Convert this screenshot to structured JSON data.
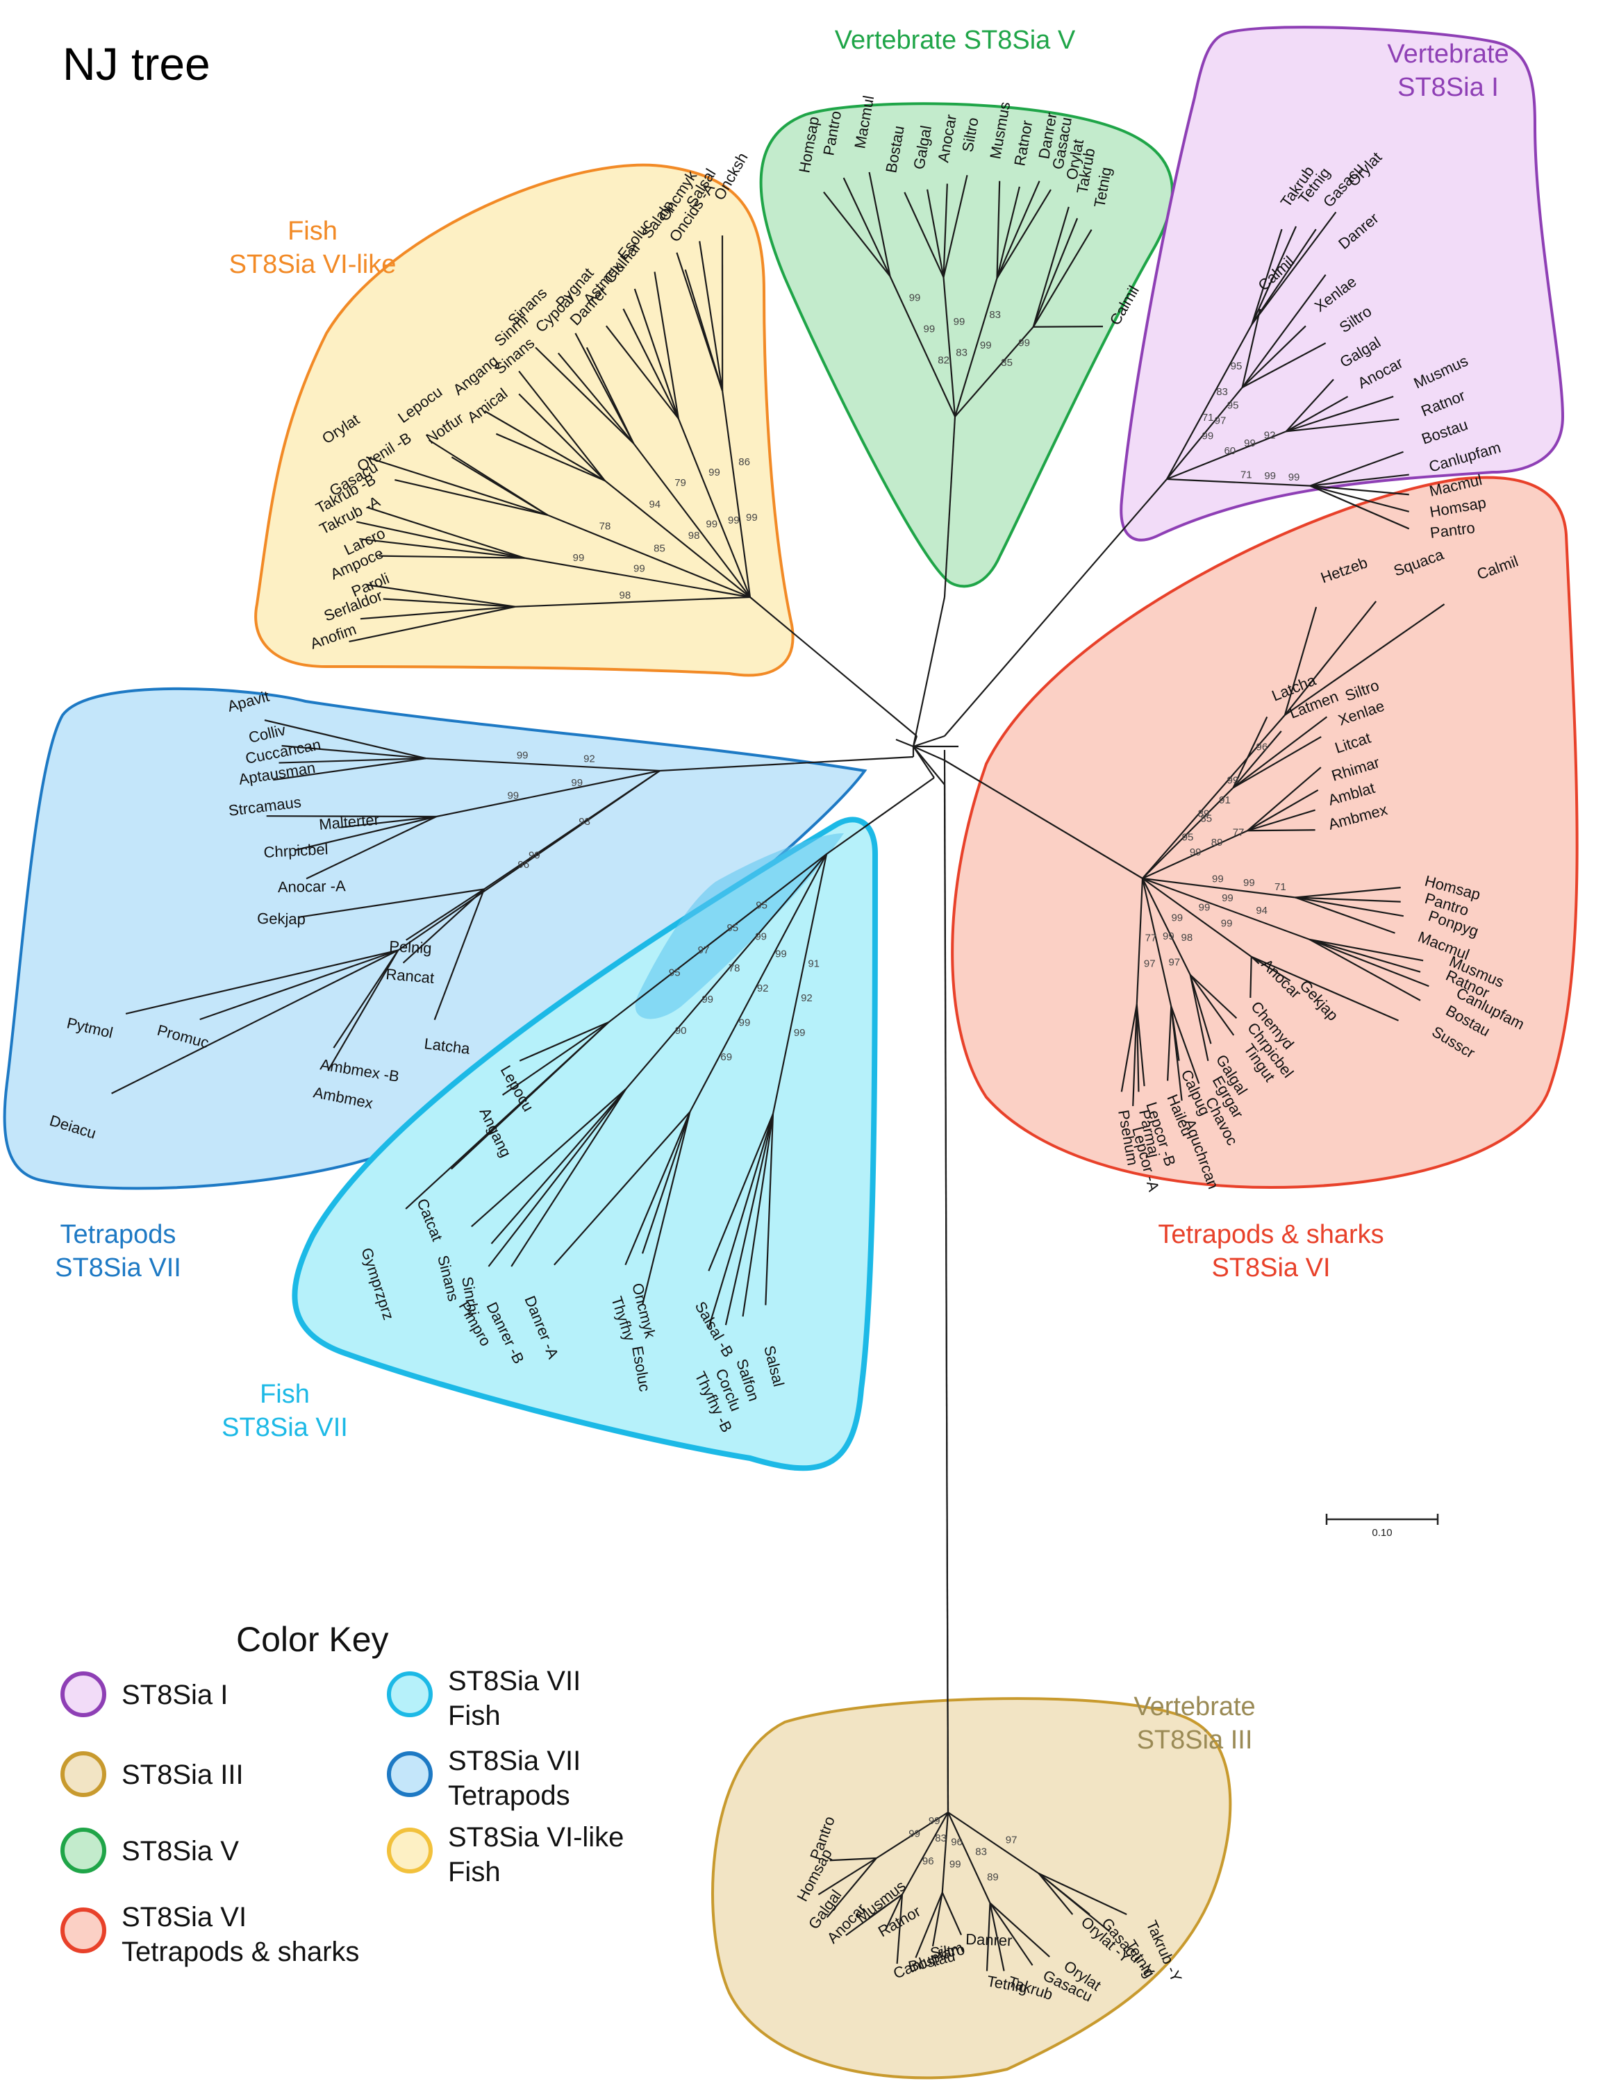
{
  "title": "NJ tree",
  "scale_bar": {
    "label": "0.10"
  },
  "color_key": {
    "title": "Color Key",
    "items": [
      {
        "id": "I",
        "line1": "ST8Sia I",
        "line2": "",
        "fill": "#f2dcf8",
        "stroke": "#8e3fb5"
      },
      {
        "id": "III",
        "line1": "ST8Sia III",
        "line2": "",
        "fill": "#f2e4c4",
        "stroke": "#c89a2e"
      },
      {
        "id": "V",
        "line1": "ST8Sia V",
        "line2": "",
        "fill": "#c3ebcc",
        "stroke": "#1fa548"
      },
      {
        "id": "VI",
        "line1": "ST8Sia VI",
        "line2": "Tetrapods & sharks",
        "fill": "#fbd0c5",
        "stroke": "#e8412a"
      },
      {
        "id": "VIIF",
        "line1": "ST8Sia VII",
        "line2": "Fish",
        "fill": "#b6f1fa",
        "stroke": "#1cb9e6"
      },
      {
        "id": "VIIT",
        "line1": "ST8Sia VII",
        "line2": "Tetrapods",
        "fill": "#c4e6fa",
        "stroke": "#1d79c4"
      },
      {
        "id": "VIL",
        "line1": "ST8Sia VI-like",
        "line2": "Fish",
        "fill": "#fdf0c4",
        "stroke": "#f2c13c"
      }
    ]
  },
  "clades": [
    {
      "id": "V",
      "label1": "Vertebrate ST8Sia V",
      "label2": "",
      "color": "#1fa548",
      "leaves": [
        "Homsap",
        "Pantro",
        "Macmul",
        "Bostau",
        "Galgal",
        "Anocar",
        "Siltro",
        "Musmus",
        "Ratnor",
        "Danrer",
        "Gasacu",
        "Orylat",
        "Takrub",
        "Tetnig",
        "Calmil"
      ],
      "bootstraps": [
        "82",
        "83",
        "99",
        "85",
        "99",
        "99",
        "83",
        "99",
        "99"
      ]
    },
    {
      "id": "I",
      "label1": "Vertebrate",
      "label2": "ST8Sia I",
      "color": "#8e3fb5",
      "leaves": [
        "Takrub",
        "Tetnig",
        "Gasacu",
        "Orylat",
        "Calmil",
        "Danrer",
        "Xenlae",
        "Siltro",
        "Galgal",
        "Anocar",
        "Musmus",
        "Ratnor",
        "Bostau",
        "Canlupfam",
        "Macmul",
        "Homsap",
        "Pantro"
      ],
      "bootstraps": [
        "71",
        "99",
        "60",
        "71",
        "83",
        "97",
        "99",
        "99",
        "95",
        "95",
        "92",
        "99"
      ]
    },
    {
      "id": "VIL",
      "label1": "Fish",
      "label2": "ST8Sia VI-like",
      "color": "#f28a26",
      "leaves": [
        "Oncksh",
        "Salsal",
        "Oncmyk",
        "Oncids -A",
        "Salalp",
        "Esoluc",
        "Clulhar",
        "Astmex",
        "Pygnat",
        "Danrer",
        "Cypcar",
        "Sinans",
        "Sinrhi",
        "Sinans",
        "Angang",
        "Amical",
        "Lepocu",
        "Notfur",
        "Orylat",
        "Orenil -B",
        "Gasacu",
        "Takrub -B",
        "Takrub -A",
        "Larcro",
        "Ampoce",
        "Paroli",
        "Serlaldor",
        "Anofim"
      ],
      "bootstraps": [
        "99",
        "99",
        "99",
        "98",
        "85",
        "99",
        "98",
        "86",
        "99",
        "79",
        "94",
        "78",
        "99"
      ]
    },
    {
      "id": "VI",
      "label1": "Tetrapods & sharks",
      "label2": "ST8Sia VI",
      "color": "#e8412a",
      "leaves": [
        "Hetzeb",
        "Squaca",
        "Calmil",
        "Latcha",
        "Latmen",
        "Siltro",
        "Xenlae",
        "Litcat",
        "Rhimar",
        "Amblat",
        "Ambmex",
        "Homsap",
        "Pantro",
        "Ponpyg",
        "Macmul",
        "Musmus",
        "Ratnor",
        "Canlupfam",
        "Bostau",
        "Susscr",
        "Anocar",
        "Gekjap",
        "Chemyd",
        "Chrpicbel",
        "Tingut",
        "Galgal",
        "Egrgar",
        "Chavoc",
        "Calpug",
        "Haileu",
        "Aquchrcan",
        "Lepcor -B",
        "Lepcor -A",
        "Parmaj",
        "Psehum"
      ],
      "bootstraps": [
        "89",
        "95",
        "99",
        "99",
        "99",
        "99",
        "99",
        "99",
        "77",
        "99",
        "85",
        "89",
        "99",
        "94",
        "99",
        "98",
        "97",
        "97",
        "96",
        "91",
        "77",
        "71"
      ]
    },
    {
      "id": "VIIT",
      "label1": "Tetrapods",
      "label2": "ST8Sia VII",
      "color": "#1d79c4",
      "leaves": [
        "Apavit",
        "Colliv",
        "Cuccancan",
        "Aptausman",
        "Strcamaus",
        "Malterter",
        "Chrpicbel",
        "Anocar -A",
        "Gekjap",
        "Pelnig",
        "Rancat",
        "Latcha",
        "Ambmex -B",
        "Ambmex",
        "Pytmol",
        "Promuc",
        "Deiacu"
      ],
      "bootstraps": [
        "92",
        "99",
        "93",
        "96",
        "99",
        "99",
        "99"
      ]
    },
    {
      "id": "VIIF",
      "label1": "Fish",
      "label2": "ST8Sia VII",
      "color": "#1cb9e6",
      "leaves": [
        "Lepocu",
        "Angang",
        "Catcat",
        "Gymprzprz",
        "Sinans",
        "Sinrhi",
        "Pimpro",
        "Danrer -B",
        "Danrer -A",
        "Thyfhy",
        "Oncmyk",
        "Esoluc",
        "Salsal -B",
        "Thyfhy -B",
        "Corclu",
        "Salfon",
        "Salsal"
      ],
      "bootstraps": [
        "95",
        "99",
        "99",
        "91",
        "95",
        "78",
        "92",
        "92",
        "97",
        "99",
        "99",
        "99",
        "95",
        "90",
        "69"
      ]
    },
    {
      "id": "III",
      "label1": "Vertebrate",
      "label2": "ST8Sia III",
      "color": "#9a8a55",
      "leaves": [
        "Pantro",
        "Homsap",
        "Galgal",
        "Anocar",
        "Musmus",
        "Ratnor",
        "Canlupfam",
        "Bostau",
        "Siltro",
        "Danrer",
        "Tetnig",
        "Takrub",
        "Gasacu",
        "Orylat",
        "Orylat -Y",
        "Gasacu -Y",
        "Tetnig",
        "Takrub -Y"
      ],
      "bootstraps": [
        "99",
        "83",
        "96",
        "83",
        "97",
        "99",
        "96",
        "99",
        "89"
      ]
    }
  ]
}
